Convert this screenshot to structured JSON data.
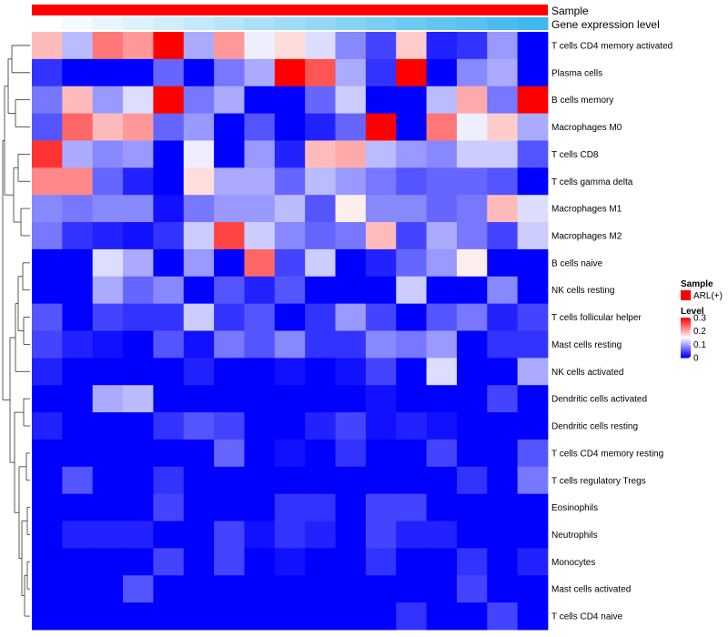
{
  "chart_data": {
    "type": "heatmap",
    "title": "",
    "annotations": {
      "top_labels": [
        "Sample",
        "Gene expression level"
      ],
      "sample_color": "#ff0000",
      "level_start_color": "#ffffff",
      "level_end_color": "#3fb8ee"
    },
    "legend": {
      "position": "right",
      "sample_title": "Sample",
      "sample_item": "ARL(+)",
      "level_title": "Level",
      "level_ticks": [
        "0.3",
        "0.2",
        "0.1",
        "0"
      ],
      "range": [
        0,
        0.3
      ]
    },
    "colorscale": {
      "low": "#0000ff",
      "mid": "#ffffff",
      "high": "#ff0000",
      "min": 0,
      "mid_value": 0.15,
      "max": 0.3
    },
    "rows": [
      "T cells CD4 memory activated",
      "Plasma cells",
      "B cells memory",
      "Macrophages M0",
      "T cells CD8",
      "T cells gamma delta",
      "Macrophages M1",
      "Macrophages M2",
      "B cells naive",
      "NK cells resting",
      "T cells follicular helper",
      "Mast cells resting",
      "NK cells activated",
      "Dendritic cells activated",
      "Dendritic cells resting",
      "T cells CD4 memory resting",
      "T cells regulatory  Tregs",
      "Eosinophils",
      "Neutrophils",
      "Monocytes",
      "Mast cells activated",
      "T cells CD4 naive"
    ],
    "values": [
      [
        0.19,
        0.11,
        0.23,
        0.21,
        0.3,
        0.1,
        0.21,
        0.14,
        0.17,
        0.13,
        0.08,
        0.04,
        0.18,
        0.02,
        0.03,
        0.09,
        0.0
      ],
      [
        0.03,
        0.0,
        0.0,
        0.0,
        0.06,
        0.0,
        0.07,
        0.1,
        0.3,
        0.25,
        0.1,
        0.03,
        0.3,
        0.0,
        0.08,
        0.1,
        0.0
      ],
      [
        0.07,
        0.19,
        0.09,
        0.13,
        0.3,
        0.07,
        0.1,
        0.0,
        0.0,
        0.06,
        0.12,
        0.0,
        0.0,
        0.11,
        0.2,
        0.07,
        0.3
      ],
      [
        0.05,
        0.24,
        0.19,
        0.21,
        0.06,
        0.09,
        0.0,
        0.05,
        0.0,
        0.02,
        0.06,
        0.3,
        0.0,
        0.23,
        0.14,
        0.18,
        0.1
      ],
      [
        0.27,
        0.1,
        0.08,
        0.09,
        0.0,
        0.14,
        0.0,
        0.09,
        0.02,
        0.19,
        0.2,
        0.11,
        0.09,
        0.08,
        0.12,
        0.12,
        0.05
      ],
      [
        0.22,
        0.22,
        0.06,
        0.02,
        0.0,
        0.17,
        0.1,
        0.1,
        0.06,
        0.11,
        0.09,
        0.07,
        0.05,
        0.06,
        0.06,
        0.05,
        0.0
      ],
      [
        0.08,
        0.07,
        0.08,
        0.08,
        0.01,
        0.07,
        0.09,
        0.09,
        0.11,
        0.05,
        0.16,
        0.08,
        0.08,
        0.06,
        0.07,
        0.19,
        0.13
      ],
      [
        0.07,
        0.03,
        0.02,
        0.01,
        0.03,
        0.12,
        0.26,
        0.12,
        0.08,
        0.06,
        0.07,
        0.19,
        0.04,
        0.1,
        0.07,
        0.04,
        0.12
      ],
      [
        0.0,
        0.0,
        0.13,
        0.1,
        0.0,
        0.09,
        0.0,
        0.24,
        0.04,
        0.12,
        0.0,
        0.02,
        0.06,
        0.09,
        0.16,
        0.0,
        0.0
      ],
      [
        0.0,
        0.0,
        0.1,
        0.06,
        0.08,
        0.0,
        0.05,
        0.02,
        0.05,
        0.0,
        0.0,
        0.0,
        0.12,
        0.0,
        0.0,
        0.08,
        0.0
      ],
      [
        0.05,
        0.0,
        0.04,
        0.03,
        0.03,
        0.12,
        0.03,
        0.05,
        0.0,
        0.03,
        0.09,
        0.04,
        0.0,
        0.05,
        0.07,
        0.02,
        0.04
      ],
      [
        0.04,
        0.02,
        0.01,
        0.0,
        0.05,
        0.01,
        0.07,
        0.05,
        0.08,
        0.03,
        0.03,
        0.08,
        0.07,
        0.09,
        0.0,
        0.03,
        0.03
      ],
      [
        0.02,
        0.0,
        0.0,
        0.0,
        0.0,
        0.02,
        0.0,
        0.0,
        0.01,
        0.0,
        0.01,
        0.04,
        0.0,
        0.13,
        0.0,
        0.0,
        0.1
      ],
      [
        0.0,
        0.0,
        0.1,
        0.11,
        0.0,
        0.0,
        0.0,
        0.0,
        0.0,
        0.0,
        0.0,
        0.01,
        0.0,
        0.0,
        0.0,
        0.04,
        0.0
      ],
      [
        0.02,
        0.0,
        0.0,
        0.0,
        0.03,
        0.05,
        0.04,
        0.0,
        0.0,
        0.02,
        0.04,
        0.01,
        0.02,
        0.01,
        0.0,
        0.0,
        0.0
      ],
      [
        0.0,
        0.0,
        0.0,
        0.0,
        0.0,
        0.0,
        0.06,
        0.0,
        0.01,
        0.0,
        0.03,
        0.0,
        0.0,
        0.04,
        0.0,
        0.0,
        0.05
      ],
      [
        0.0,
        0.05,
        0.0,
        0.0,
        0.03,
        0.0,
        0.0,
        0.0,
        0.0,
        0.0,
        0.0,
        0.0,
        0.0,
        0.0,
        0.03,
        0.0,
        0.07
      ],
      [
        0.0,
        0.0,
        0.0,
        0.0,
        0.04,
        0.0,
        0.0,
        0.0,
        0.03,
        0.03,
        0.0,
        0.04,
        0.04,
        0.0,
        0.0,
        0.0,
        0.0
      ],
      [
        0.0,
        0.02,
        0.02,
        0.02,
        0.0,
        0.0,
        0.04,
        0.01,
        0.03,
        0.02,
        0.0,
        0.04,
        0.02,
        0.02,
        0.0,
        0.0,
        0.0
      ],
      [
        0.0,
        0.0,
        0.0,
        0.0,
        0.04,
        0.0,
        0.04,
        0.0,
        0.01,
        0.0,
        0.0,
        0.03,
        0.0,
        0.0,
        0.03,
        0.0,
        0.02
      ],
      [
        0.0,
        0.0,
        0.0,
        0.05,
        0.0,
        0.0,
        0.0,
        0.0,
        0.0,
        0.0,
        0.0,
        0.0,
        0.0,
        0.0,
        0.04,
        0.0,
        0.0
      ],
      [
        0.0,
        0.0,
        0.0,
        0.0,
        0.0,
        0.0,
        0.0,
        0.0,
        0.0,
        0.0,
        0.0,
        0.0,
        0.03,
        0.0,
        0.0,
        0.04,
        0.0
      ]
    ],
    "xlabel": "",
    "ylabel": ""
  }
}
